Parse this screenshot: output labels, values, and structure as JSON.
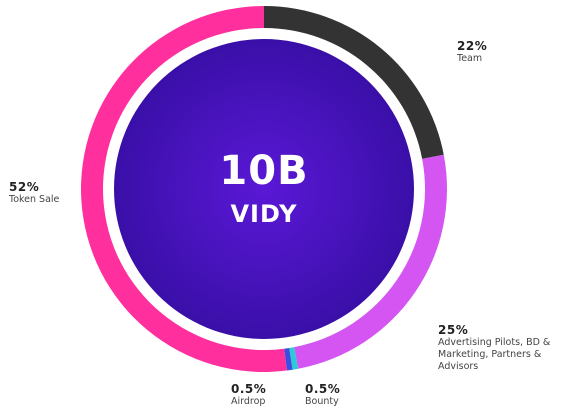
{
  "chart_data": {
    "type": "donut",
    "center": {
      "value": "10B",
      "label": "VIDY"
    },
    "slices": [
      {
        "key": "team",
        "percent_label": "22%",
        "name": "Team",
        "value": 22,
        "color": "#333333"
      },
      {
        "key": "advertising",
        "percent_label": "25%",
        "name": "Advertising Pilots, BD & Marketing, Partners & Advisors",
        "value": 25,
        "color": "#d455f2"
      },
      {
        "key": "bounty",
        "percent_label": "0.5%",
        "name": "Bounty",
        "value": 0.5,
        "color": "#2ec9d8"
      },
      {
        "key": "airdrop",
        "percent_label": "0.5%",
        "name": "Airdrop",
        "value": 0.5,
        "color": "#3a4fe0"
      },
      {
        "key": "token_sale",
        "percent_label": "52%",
        "name": "Token Sale",
        "value": 52,
        "color": "#ff2f9e"
      }
    ]
  }
}
